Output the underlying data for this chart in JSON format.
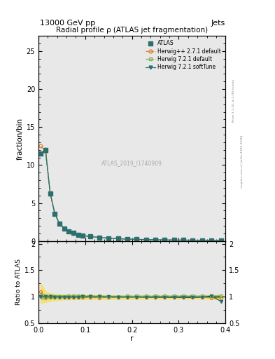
{
  "title": "Radial profile ρ (ATLAS jet fragmentation)",
  "header_left": "13000 GeV pp",
  "header_right": "Jets",
  "ylabel_main": "fraction/bin",
  "ylabel_ratio": "Ratio to ATLAS",
  "xlabel": "r",
  "watermark": "ATLAS_2019_I1740909",
  "right_label": "mcplots.cern.ch [arXiv:1306.3436]",
  "right_label2": "Rivet 3.1.10, ≥ 2.2M events",
  "xlim": [
    0.0,
    0.4
  ],
  "ylim_main": [
    0.0,
    27
  ],
  "ylim_ratio": [
    0.5,
    2.05
  ],
  "r_values": [
    0.005,
    0.015,
    0.025,
    0.035,
    0.045,
    0.055,
    0.065,
    0.075,
    0.085,
    0.095,
    0.11,
    0.13,
    0.15,
    0.17,
    0.19,
    0.21,
    0.23,
    0.25,
    0.27,
    0.29,
    0.31,
    0.33,
    0.35,
    0.37,
    0.39
  ],
  "atlas_values": [
    11.5,
    12.0,
    6.3,
    3.6,
    2.3,
    1.65,
    1.25,
    1.05,
    0.85,
    0.72,
    0.6,
    0.48,
    0.38,
    0.31,
    0.26,
    0.22,
    0.19,
    0.17,
    0.15,
    0.13,
    0.12,
    0.11,
    0.1,
    0.09,
    0.09
  ],
  "atlas_err": [
    0.3,
    0.3,
    0.15,
    0.08,
    0.05,
    0.04,
    0.03,
    0.025,
    0.02,
    0.018,
    0.015,
    0.012,
    0.01,
    0.008,
    0.007,
    0.006,
    0.005,
    0.005,
    0.004,
    0.004,
    0.003,
    0.003,
    0.003,
    0.003,
    0.003
  ],
  "herwig271_values": [
    12.5,
    11.8,
    6.2,
    3.55,
    2.28,
    1.63,
    1.23,
    1.03,
    0.84,
    0.71,
    0.59,
    0.47,
    0.375,
    0.305,
    0.258,
    0.218,
    0.188,
    0.167,
    0.148,
    0.128,
    0.118,
    0.108,
    0.099,
    0.088,
    0.088
  ],
  "herwig721_values": [
    11.6,
    12.05,
    6.32,
    3.61,
    2.31,
    1.66,
    1.26,
    1.06,
    0.86,
    0.73,
    0.61,
    0.485,
    0.382,
    0.312,
    0.262,
    0.222,
    0.192,
    0.172,
    0.152,
    0.132,
    0.122,
    0.112,
    0.101,
    0.091,
    0.091
  ],
  "herwig721soft_values": [
    11.5,
    12.0,
    6.28,
    3.58,
    2.28,
    1.64,
    1.24,
    1.04,
    0.845,
    0.718,
    0.598,
    0.478,
    0.378,
    0.308,
    0.258,
    0.218,
    0.188,
    0.168,
    0.148,
    0.128,
    0.118,
    0.108,
    0.099,
    0.091,
    0.082
  ],
  "herwig271_ratio": [
    1.09,
    0.98,
    0.985,
    0.986,
    0.991,
    0.988,
    0.984,
    0.981,
    0.988,
    0.986,
    0.983,
    0.979,
    0.987,
    0.984,
    0.992,
    0.991,
    0.989,
    0.982,
    0.987,
    0.985,
    0.983,
    0.982,
    0.99,
    0.978,
    0.978
  ],
  "herwig721_ratio": [
    1.009,
    1.004,
    1.003,
    1.003,
    1.004,
    1.006,
    1.008,
    1.01,
    1.012,
    1.014,
    1.017,
    1.01,
    1.005,
    1.006,
    1.008,
    1.009,
    1.011,
    1.012,
    1.013,
    1.015,
    1.017,
    1.018,
    1.01,
    1.011,
    1.011
  ],
  "herwig721soft_ratio": [
    1.0,
    1.0,
    0.997,
    0.994,
    0.991,
    0.994,
    0.992,
    0.99,
    0.994,
    0.997,
    0.997,
    0.996,
    0.995,
    0.994,
    0.992,
    0.991,
    0.989,
    0.988,
    0.987,
    0.985,
    0.983,
    0.982,
    0.99,
    1.011,
    0.911
  ],
  "herwig721_band_lo": [
    0.95,
    0.97,
    0.97,
    0.98,
    0.98,
    0.985,
    0.985,
    0.986,
    0.987,
    0.988,
    0.99,
    0.99,
    0.99,
    0.991,
    0.992,
    0.992,
    0.993,
    0.993,
    0.994,
    0.994,
    0.994,
    0.994,
    0.99,
    0.985,
    0.98
  ],
  "herwig721_band_hi": [
    1.07,
    1.04,
    1.04,
    1.03,
    1.03,
    1.025,
    1.025,
    1.024,
    1.023,
    1.022,
    1.02,
    1.02,
    1.02,
    1.019,
    1.018,
    1.018,
    1.017,
    1.017,
    1.016,
    1.016,
    1.016,
    1.016,
    1.02,
    1.025,
    1.03
  ],
  "herwig271_band_lo": [
    0.88,
    0.9,
    0.92,
    0.93,
    0.94,
    0.945,
    0.947,
    0.948,
    0.95,
    0.952,
    0.953,
    0.954,
    0.955,
    0.956,
    0.957,
    0.958,
    0.959,
    0.96,
    0.961,
    0.962,
    0.963,
    0.964,
    0.962,
    0.955,
    0.95
  ],
  "herwig271_band_hi": [
    1.25,
    1.1,
    1.06,
    1.05,
    1.04,
    1.038,
    1.035,
    1.033,
    1.03,
    1.028,
    1.026,
    1.024,
    1.022,
    1.02,
    1.018,
    1.016,
    1.015,
    1.014,
    1.013,
    1.012,
    1.011,
    1.01,
    1.012,
    1.018,
    1.02
  ],
  "color_atlas": "#2d6e6e",
  "color_herwig271": "#e07b30",
  "color_herwig721": "#7ab648",
  "color_herwig721soft": "#2d6e6e",
  "color_band_271_face": "#f5e06e",
  "color_band_721_face": "#7ab648",
  "bg_color": "#e8e8e8"
}
